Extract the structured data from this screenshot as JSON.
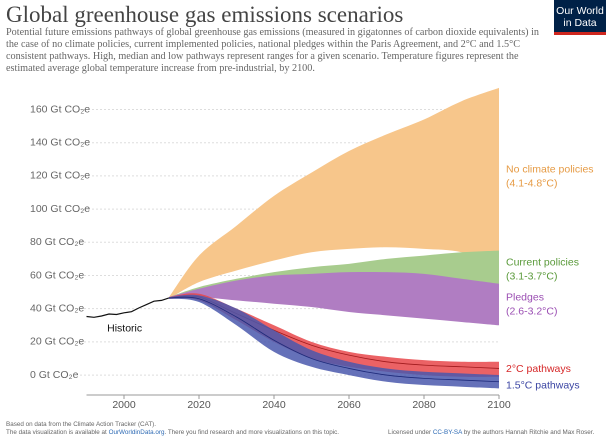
{
  "chart_data": {
    "type": "area",
    "title": "Global greenhouse gas emissions scenarios",
    "subtitle": "Potential future emissions pathways of global greenhouse gas emissions (measured in gigatonnes of carbon dioxide equivalents) in the case of no climate policies, current implemented policies, national pledges within the Paris Agreement, and 2°C and 1.5°C consistent pathways. High, median and low pathways represent ranges for a given scenario. Temperature figures represent the estimated average global temperature increase from pre-industrial, by 2100.",
    "logo": [
      "Our World",
      "in Data"
    ],
    "xlim": [
      1990,
      2100
    ],
    "xticks": [
      2000,
      2020,
      2040,
      2060,
      2080,
      2100
    ],
    "ylim": [
      -12,
      175
    ],
    "yticks": [
      {
        "value": 0,
        "label": "0 Gt CO₂e"
      },
      {
        "value": 20,
        "label": "20 Gt CO₂e"
      },
      {
        "value": 40,
        "label": "40 Gt CO₂e"
      },
      {
        "value": 60,
        "label": "60 Gt CO₂e"
      },
      {
        "value": 80,
        "label": "80 Gt CO₂e"
      },
      {
        "value": 100,
        "label": "100 Gt CO₂e"
      },
      {
        "value": 120,
        "label": "120 Gt CO₂e"
      },
      {
        "value": 140,
        "label": "140 Gt CO₂e"
      },
      {
        "value": 160,
        "label": "160 Gt CO₂e"
      }
    ],
    "grid": true,
    "historic": {
      "name": "Historic",
      "color": "#111111",
      "x": [
        1990,
        1992,
        1994,
        1996,
        1998,
        2000,
        2002,
        2004,
        2006,
        2008,
        2010,
        2012
      ],
      "values": [
        35.3,
        34.8,
        35.6,
        36.8,
        36.5,
        37.5,
        38.2,
        40.5,
        42.5,
        44.5,
        45,
        46.5
      ]
    },
    "x": [
      2012,
      2020,
      2030,
      2040,
      2050,
      2060,
      2070,
      2080,
      2090,
      2100
    ],
    "series": [
      {
        "name": "No climate policies",
        "range": "(4.1-4.8°C)",
        "color": "#f7c68b",
        "label_color": "#e69b45",
        "high": [
          47,
          72,
          90,
          108,
          122,
          135,
          145,
          154,
          165,
          173
        ],
        "low": [
          46,
          56,
          63,
          69,
          74,
          76,
          77,
          76,
          74,
          66
        ]
      },
      {
        "name": "Current policies",
        "range": "(3.1-3.7°C)",
        "color": "#a8cc8e",
        "label_color": "#5a9a3a",
        "high": [
          47,
          53,
          58,
          62,
          65,
          67,
          70,
          72,
          74,
          75
        ],
        "low": [
          46,
          48,
          50,
          52,
          54,
          55,
          56,
          55,
          53,
          52
        ]
      },
      {
        "name": "Pledges",
        "range": "(2.6-3.2°C)",
        "color": "#b07dc2",
        "label_color": "#9b4fb3",
        "high": [
          47,
          52,
          57,
          60,
          61,
          62,
          62,
          61,
          58,
          55
        ],
        "low": [
          46,
          47,
          45,
          43,
          41,
          38,
          36,
          34,
          32,
          30
        ]
      },
      {
        "name": "2°C pathways",
        "color": "#e8474a",
        "label_color": "#d62728",
        "median_color": "#a01a1d",
        "high": [
          47,
          49,
          40,
          30,
          20,
          14,
          11,
          9,
          8,
          8
        ],
        "median": [
          46.5,
          47,
          37,
          27,
          18,
          12,
          8,
          6,
          5,
          4
        ],
        "low": [
          46,
          45,
          33,
          20,
          10,
          5,
          2,
          0,
          -1,
          -1
        ]
      },
      {
        "name": "1.5°C pathways",
        "color": "#4a58ad",
        "label_color": "#3b45a3",
        "median_color": "#1e2a7a",
        "high": [
          47,
          48,
          40,
          27,
          15,
          8,
          4,
          2,
          1,
          0
        ],
        "median": [
          46.5,
          46,
          35,
          21,
          10,
          4,
          0,
          -2,
          -3,
          -4
        ],
        "low": [
          46,
          44,
          30,
          14,
          5,
          0,
          -4,
          -6,
          -7,
          -8
        ]
      }
    ],
    "source": "Based on data from the Climate Action Tracker (CAT).",
    "availability": [
      "The data visualization is available at ",
      "OurWorldinData.org",
      ". There you find research and more visualizations on this topic."
    ],
    "license": [
      "Licensed under ",
      "CC-BY-SA",
      " by the authors Hannah Ritchie and Max Roser."
    ]
  }
}
